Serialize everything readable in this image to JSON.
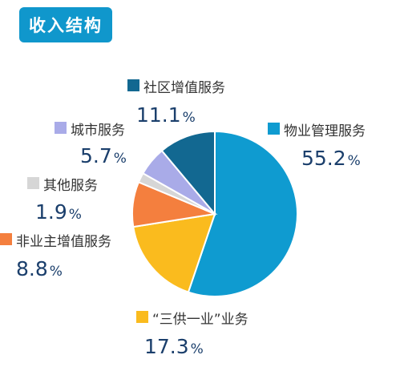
{
  "header": {
    "title": "收入结构",
    "badge_color": "#1097cc"
  },
  "chart_data": {
    "type": "pie",
    "title": "收入结构",
    "start_angle_deg": 0,
    "direction": "clockwise",
    "slices": [
      {
        "name": "物业管理服务",
        "value": 55.2,
        "value_label": "55.2",
        "color": "#0f9bd0"
      },
      {
        "name": "“三供一业”业务",
        "value": 17.3,
        "value_label": "17.3",
        "color": "#fabb1e"
      },
      {
        "name": "非业主增值服务",
        "value": 8.8,
        "value_label": "8.8",
        "color": "#f47f3e"
      },
      {
        "name": "其他服务",
        "value": 1.9,
        "value_label": "1.9",
        "color": "#d6d6d6"
      },
      {
        "name": "城市服务",
        "value": 5.7,
        "value_label": "5.7",
        "color": "#a9abe8"
      },
      {
        "name": "社区增值服务",
        "value": 11.1,
        "value_label": "11.1",
        "color": "#126891"
      }
    ],
    "legend": "labels-around-pie"
  }
}
